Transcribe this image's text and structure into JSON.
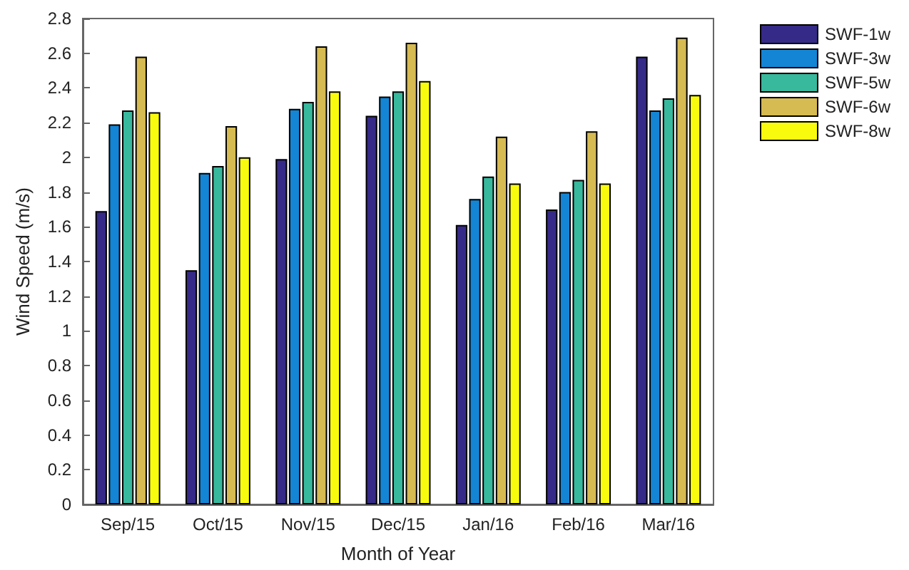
{
  "chart_data": {
    "type": "bar",
    "xlabel": "Month of Year",
    "ylabel": "Wind Speed (m/s)",
    "categories": [
      "Sep/15",
      "Oct/15",
      "Nov/15",
      "Dec/15",
      "Jan/16",
      "Feb/16",
      "Mar/16"
    ],
    "series": [
      {
        "name": "SWF-1w",
        "color": "#352a87",
        "values": [
          1.69,
          1.35,
          1.99,
          2.24,
          1.61,
          1.7,
          2.58
        ]
      },
      {
        "name": "SWF-3w",
        "color": "#1485d4",
        "values": [
          2.19,
          1.91,
          2.28,
          2.35,
          1.76,
          1.8,
          2.27
        ]
      },
      {
        "name": "SWF-5w",
        "color": "#38b89d",
        "values": [
          2.27,
          1.95,
          2.32,
          2.38,
          1.89,
          1.87,
          2.34
        ]
      },
      {
        "name": "SWF-6w",
        "color": "#d6ba52",
        "values": [
          2.58,
          2.18,
          2.64,
          2.66,
          2.12,
          2.15,
          2.69
        ]
      },
      {
        "name": "SWF-8w",
        "color": "#f9fb0e",
        "values": [
          2.26,
          2.0,
          2.38,
          2.44,
          1.85,
          1.85,
          2.36
        ]
      }
    ],
    "ylim": [
      0,
      2.8
    ],
    "yticks": [
      0,
      0.2,
      0.4,
      0.6,
      0.8,
      1,
      1.2,
      1.4,
      1.6,
      1.8,
      2,
      2.2,
      2.4,
      2.6,
      2.8
    ],
    "grid": false,
    "legend": "top right"
  }
}
